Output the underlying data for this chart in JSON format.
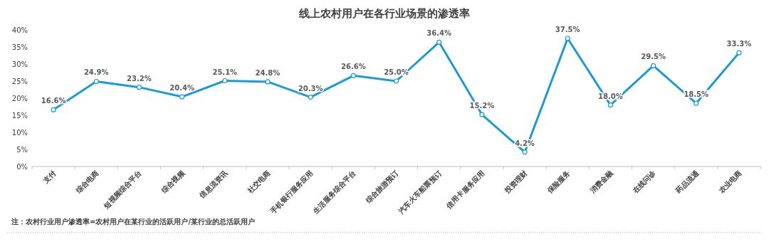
{
  "chart_data": {
    "type": "line",
    "title": "线上农村用户在各行业场景的渗透率",
    "categories": [
      "支付",
      "综合电商",
      "短视频综合平台",
      "综合视频",
      "信息流资讯",
      "社交电商",
      "手机银行服务应用",
      "生活服务综合平台",
      "综合旅游预订",
      "汽车火车船票预订",
      "信用卡服务应用",
      "投资理财",
      "保险服务",
      "消费金融",
      "在线问诊",
      "药品流通",
      "农业电商"
    ],
    "series": [
      {
        "color": "#1a9ad6",
        "values": [
          16.6,
          24.9,
          23.2,
          20.4,
          25.1,
          24.8,
          20.3,
          26.6,
          25.0,
          36.4,
          15.2,
          4.2,
          37.5,
          18.0,
          29.5,
          18.5,
          33.3
        ],
        "value_labels": [
          "16.6%",
          "24.9%",
          "23.2%",
          "20.4%",
          "25.1%",
          "24.8%",
          "20.3%",
          "26.6%",
          "25.0%",
          "36.4%",
          "15.2%",
          "4.2%",
          "37.5%",
          "18.0%",
          "29.5%",
          "18.5%",
          "33.3%"
        ]
      }
    ],
    "ylim": [
      0,
      40
    ],
    "yticks": [
      {
        "value": 0,
        "label": "0%"
      },
      {
        "value": 5,
        "label": "5%"
      },
      {
        "value": 10,
        "label": "10%"
      },
      {
        "value": 15,
        "label": "15%"
      },
      {
        "value": 20,
        "label": "20%"
      },
      {
        "value": 25,
        "label": "25%"
      },
      {
        "value": 30,
        "label": "30%"
      },
      {
        "value": 35,
        "label": "35%"
      },
      {
        "value": 40,
        "label": "40%"
      }
    ],
    "grid": false,
    "marker": "circle",
    "line_style": "solid",
    "annotations": [
      "注：农村行业用户渗透率=农村用户在某行业的活跃用户/某行业的总活跃用户"
    ]
  }
}
